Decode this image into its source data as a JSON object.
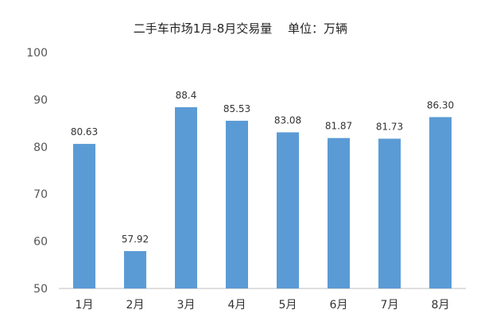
{
  "chart_data": {
    "type": "bar",
    "title": "二手车市场1月-8月交易量",
    "unit_label": "单位：万辆",
    "categories": [
      "1月",
      "2月",
      "3月",
      "4月",
      "5月",
      "6月",
      "7月",
      "8月"
    ],
    "values": [
      80.63,
      57.92,
      88.4,
      85.53,
      83.08,
      81.87,
      81.73,
      86.3
    ],
    "value_labels": [
      "80.63",
      "57.92",
      "88.4",
      "85.53",
      "83.08",
      "81.87",
      "81.73",
      "86.30"
    ],
    "xlabel": "",
    "ylabel": "",
    "ylim": [
      50,
      100
    ],
    "yticks": [
      50,
      60,
      70,
      80,
      90,
      100
    ],
    "grid": false,
    "legend": "none",
    "bar_color": "#5b9bd5"
  }
}
